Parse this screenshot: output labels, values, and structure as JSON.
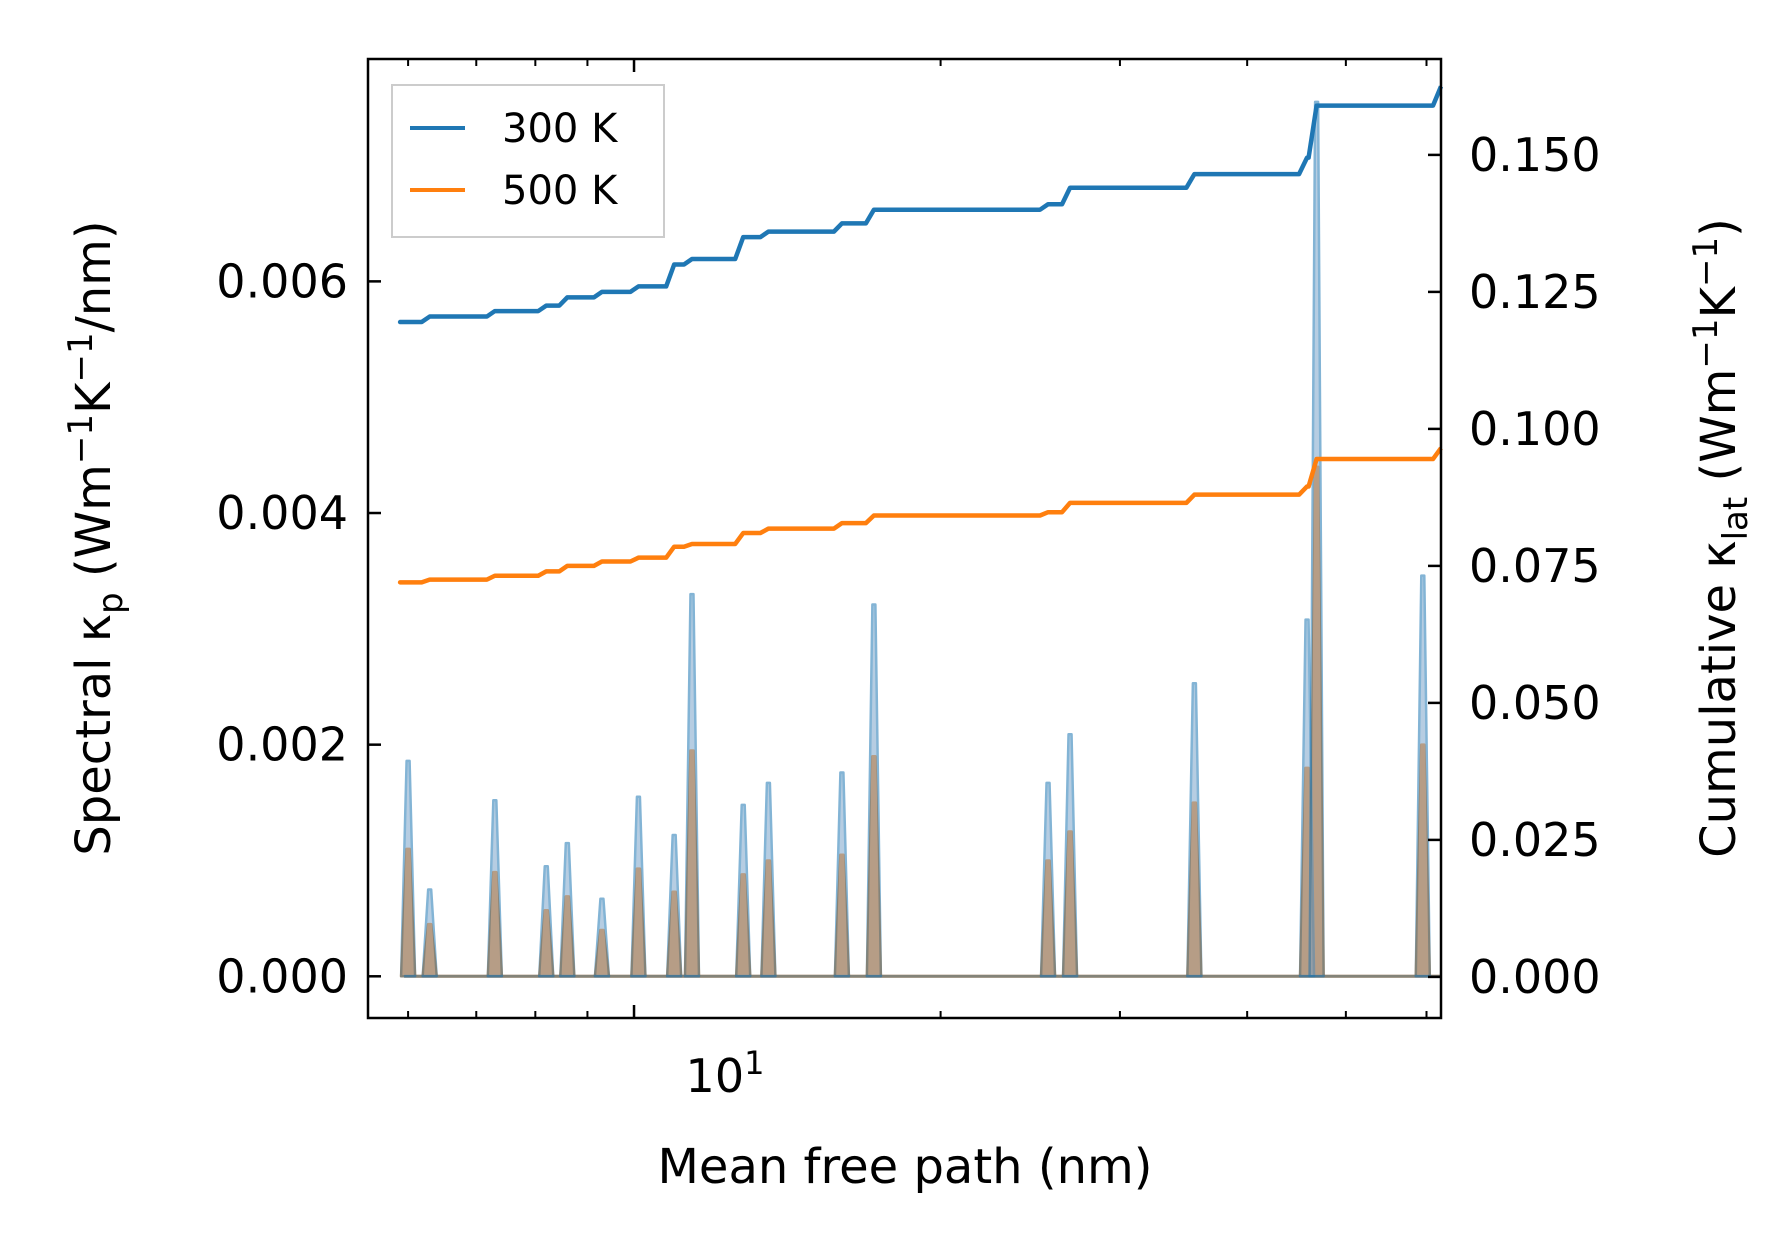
{
  "chart_data": {
    "type": "line",
    "xscale": "log",
    "xlim": [
      5.48,
      62
    ],
    "xlabel": "Mean free path (nm)",
    "x_ticks": [
      {
        "value": 10,
        "base": "10",
        "exp": "1"
      }
    ],
    "x_minor_ticks": [
      6,
      7,
      8,
      9,
      20,
      30,
      40,
      50,
      60
    ],
    "left_axis": {
      "label_parts": {
        "pre": "Spectral κ",
        "sub": "p",
        "mid": " (Wm",
        "sup1": "−1",
        "k": "K",
        "sup2": "−1",
        "post": "/nm)"
      },
      "ylim": [
        -0.00036,
        0.00792
      ],
      "ticks": [
        "0.000",
        "0.002",
        "0.004",
        "0.006"
      ]
    },
    "right_axis": {
      "label_parts": {
        "pre": "Cumulative κ",
        "sub": "lat",
        "mid": " (Wm",
        "sup1": "−1",
        "k": "K",
        "sup2": "−1",
        "post": ")"
      },
      "ylim": [
        -0.0075,
        0.1675
      ],
      "ticks": [
        "0.000",
        "0.025",
        "0.050",
        "0.075",
        "0.100",
        "0.125",
        "0.150"
      ]
    },
    "legend": {
      "position": "top-left",
      "entries": [
        "300 K",
        "500 K"
      ]
    },
    "spectral_peaks": {
      "x": [
        6.0,
        6.3,
        7.3,
        8.2,
        8.6,
        9.3,
        10.1,
        10.95,
        11.4,
        12.8,
        13.55,
        16.0,
        17.2,
        25.5,
        26.8,
        35.5,
        45.8,
        46.8,
        59.5
      ],
      "300 K": [
        0.00186,
        0.00075,
        0.00152,
        0.00095,
        0.00115,
        0.00067,
        0.00155,
        0.00122,
        0.0033,
        0.00148,
        0.00167,
        0.00176,
        0.00321,
        0.00167,
        0.00209,
        0.00253,
        0.00308,
        0.00755,
        0.00346
      ],
      "500 K": [
        0.0011,
        0.00045,
        0.0009,
        0.00057,
        0.00069,
        0.0004,
        0.00093,
        0.00073,
        0.00195,
        0.00088,
        0.001,
        0.00105,
        0.0019,
        0.001,
        0.00125,
        0.0015,
        0.0018,
        0.0044,
        0.002
      ]
    },
    "cumulative": {
      "x": [
        5.9,
        6.0,
        6.3,
        7.3,
        8.2,
        8.6,
        9.3,
        10.1,
        10.95,
        11.4,
        12.8,
        13.55,
        16.0,
        17.2,
        25.5,
        26.8,
        35.5,
        45.8,
        46.8,
        59.5,
        62.0
      ],
      "300 K": [
        0.1195,
        0.1195,
        0.1205,
        0.1215,
        0.1225,
        0.124,
        0.125,
        0.126,
        0.13,
        0.131,
        0.135,
        0.136,
        0.1375,
        0.14,
        0.141,
        0.144,
        0.1465,
        0.1495,
        0.159,
        0.159,
        0.1625
      ],
      "500 K": [
        0.072,
        0.072,
        0.0725,
        0.0732,
        0.074,
        0.075,
        0.0758,
        0.0765,
        0.0785,
        0.079,
        0.081,
        0.0818,
        0.0828,
        0.0842,
        0.0848,
        0.0865,
        0.088,
        0.0895,
        0.0945,
        0.0945,
        0.0965
      ]
    },
    "colors": {
      "300 K": "#1f77b4",
      "500 K": "#ff7f0e",
      "spectral_300_fill": "#7ba6cc",
      "legend_border": "#cccccc"
    }
  }
}
